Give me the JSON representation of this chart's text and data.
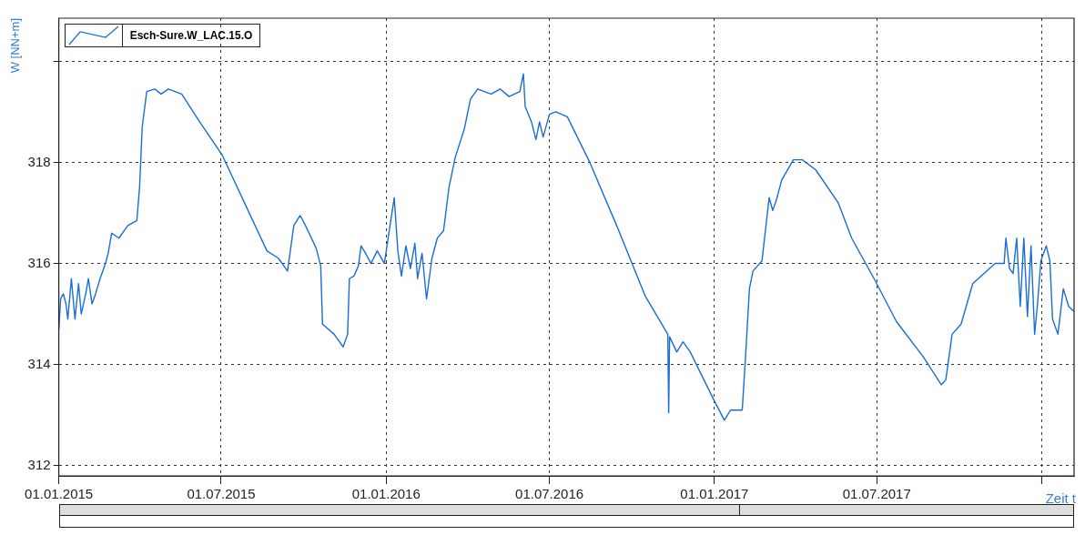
{
  "chart_data": {
    "type": "line",
    "ylabel": "W [NN+m]",
    "xlabel": "Zeit t",
    "legend": "top left",
    "grid": true,
    "xlim": [
      "2015-01-01",
      "2018-02-06"
    ],
    "xticks": [
      {
        "value": "2015-01-01",
        "label": "01.01.2015"
      },
      {
        "value": "2015-07-01",
        "label": "01.07.2015"
      },
      {
        "value": "2016-01-01",
        "label": "01.01.2016"
      },
      {
        "value": "2016-07-01",
        "label": "01.07.2016"
      },
      {
        "value": "2017-01-01",
        "label": "01.01.2017"
      },
      {
        "value": "2017-07-01",
        "label": "01.07.2017"
      },
      {
        "value": "2018-01-01",
        "label": null
      }
    ],
    "ylim": [
      311.8,
      320.85
    ],
    "yticks": [
      312,
      314,
      316,
      318,
      {
        "value": 320,
        "label": null
      }
    ],
    "x": [
      "2015-01-01",
      "2015-01-03",
      "2015-01-06",
      "2015-01-09",
      "2015-01-11",
      "2015-01-15",
      "2015-01-19",
      "2015-01-23",
      "2015-01-26",
      "2015-01-31",
      "2015-02-03",
      "2015-02-07",
      "2015-02-11",
      "2015-02-16",
      "2015-02-22",
      "2015-02-25",
      "2015-03-01",
      "2015-03-09",
      "2015-03-19",
      "2015-03-29",
      "2015-04-01",
      "2015-04-04",
      "2015-04-09",
      "2015-04-18",
      "2015-04-25",
      "2015-05-03",
      "2015-05-18",
      "2015-06-07",
      "2015-07-02",
      "2015-07-27",
      "2015-08-21",
      "2015-09-03",
      "2015-09-13",
      "2015-09-20",
      "2015-09-27",
      "2015-10-03",
      "2015-10-15",
      "2015-10-20",
      "2015-10-22",
      "2015-11-04",
      "2015-11-14",
      "2015-11-19",
      "2015-11-21",
      "2015-11-26",
      "2015-12-01",
      "2015-12-04",
      "2015-12-09",
      "2015-12-15",
      "2015-12-22",
      "2015-12-30",
      "2016-01-04",
      "2016-01-10",
      "2016-01-14",
      "2016-01-18",
      "2016-01-23",
      "2016-01-28",
      "2016-02-02",
      "2016-02-05",
      "2016-02-10",
      "2016-02-15",
      "2016-02-21",
      "2016-02-27",
      "2016-03-05",
      "2016-03-11",
      "2016-03-18",
      "2016-03-28",
      "2016-04-04",
      "2016-04-12",
      "2016-04-27",
      "2016-05-07",
      "2016-05-17",
      "2016-05-29",
      "2016-06-02",
      "2016-06-04",
      "2016-06-11",
      "2016-06-16",
      "2016-06-20",
      "2016-06-24",
      "2016-07-01",
      "2016-07-08",
      "2016-07-21",
      "2016-08-15",
      "2016-09-14",
      "2016-10-16",
      "2016-11-10",
      "2016-11-11",
      "2016-11-12",
      "2016-11-20",
      "2016-11-27",
      "2016-12-05",
      "2016-12-30",
      "2017-01-12",
      "2017-01-19",
      "2017-02-01",
      "2017-02-05",
      "2017-02-09",
      "2017-02-13",
      "2017-02-23",
      "2017-03-03",
      "2017-03-07",
      "2017-03-11",
      "2017-03-17",
      "2017-03-30",
      "2017-04-09",
      "2017-04-24",
      "2017-05-19",
      "2017-06-03",
      "2017-06-28",
      "2017-07-23",
      "2017-08-22",
      "2017-09-11",
      "2017-09-16",
      "2017-09-23",
      "2017-10-03",
      "2017-10-16",
      "2017-11-10",
      "2017-11-20",
      "2017-11-22",
      "2017-11-26",
      "2017-11-30",
      "2017-12-04",
      "2017-12-08",
      "2017-12-12",
      "2017-12-16",
      "2017-12-20",
      "2017-12-24",
      "2017-12-27",
      "2017-12-31",
      "2018-01-06",
      "2018-01-10",
      "2018-01-13",
      "2018-01-19",
      "2018-01-25",
      "2018-01-31",
      "2018-02-06"
    ],
    "series": [
      {
        "name": "Esch-Sure.W_LAC.15.O",
        "color": "#1a6dd6",
        "values": [
          314.7,
          315.3,
          315.4,
          315.2,
          314.9,
          315.7,
          314.9,
          315.6,
          315.0,
          315.4,
          315.7,
          315.2,
          315.4,
          315.7,
          316.0,
          316.2,
          316.6,
          316.5,
          316.75,
          316.85,
          317.5,
          318.7,
          319.4,
          319.45,
          319.35,
          319.45,
          319.35,
          318.8,
          318.15,
          317.2,
          316.25,
          316.1,
          315.85,
          316.75,
          316.95,
          316.75,
          316.3,
          315.95,
          314.8,
          314.6,
          314.35,
          314.6,
          315.7,
          315.75,
          315.95,
          316.35,
          316.2,
          316.0,
          316.25,
          316.0,
          316.6,
          317.3,
          316.25,
          315.75,
          316.35,
          315.9,
          316.4,
          315.7,
          316.2,
          315.3,
          316.1,
          316.5,
          316.65,
          317.5,
          318.1,
          318.65,
          319.25,
          319.45,
          319.35,
          319.45,
          319.3,
          319.4,
          319.75,
          319.1,
          318.8,
          318.45,
          318.8,
          318.5,
          318.95,
          319.0,
          318.9,
          318.0,
          316.75,
          315.35,
          314.6,
          313.05,
          314.55,
          314.25,
          314.45,
          314.25,
          313.35,
          312.9,
          313.1,
          313.1,
          314.25,
          315.5,
          315.85,
          316.05,
          317.3,
          317.05,
          317.25,
          317.65,
          318.05,
          318.05,
          317.85,
          317.2,
          316.5,
          315.7,
          314.85,
          314.15,
          313.6,
          313.7,
          314.6,
          314.8,
          315.6,
          316.0,
          316.0,
          316.5,
          315.9,
          315.8,
          316.5,
          315.15,
          316.5,
          314.95,
          316.35,
          314.6,
          315.15,
          316.05,
          316.35,
          316.05,
          314.9,
          314.6,
          315.5,
          315.15,
          315.05
        ]
      }
    ]
  }
}
